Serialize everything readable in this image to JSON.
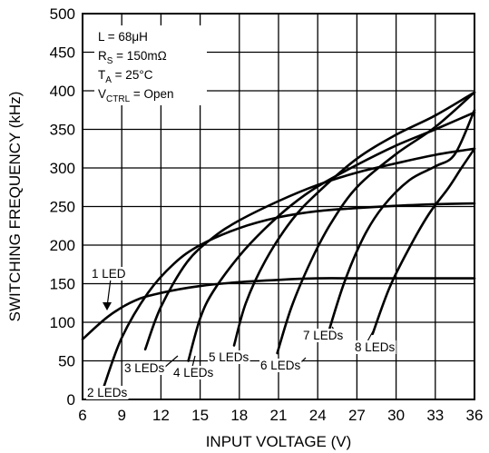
{
  "chart_data": {
    "type": "line",
    "xlabel": "INPUT VOLTAGE (V)",
    "ylabel": "SWITCHING FREQUENCY (kHz)",
    "xlim": [
      6,
      36
    ],
    "ylim": [
      0,
      500
    ],
    "xticks": [
      6,
      9,
      12,
      15,
      18,
      21,
      24,
      27,
      30,
      33,
      36
    ],
    "yticks": [
      0,
      50,
      100,
      150,
      200,
      250,
      300,
      350,
      400,
      450,
      500
    ],
    "grid": true,
    "conditions": {
      "l": "L = 68μH",
      "rs_main": "R",
      "rs_sub": "S",
      "rs_rest": " = 150mΩ",
      "ta_main": "T",
      "ta_sub": "A",
      "ta_rest": " = 25°C",
      "vctrl_main": "V",
      "vctrl_sub": "CTRL",
      "vctrl_rest": " = Open"
    },
    "series": [
      {
        "name": "1 LED",
        "x": [
          6,
          8,
          10,
          12,
          15,
          18,
          21,
          24,
          27,
          30,
          33,
          36
        ],
        "values": [
          78,
          108,
          128,
          138,
          147,
          152,
          155,
          157,
          157,
          157,
          157,
          157
        ]
      },
      {
        "name": "2 LEDs",
        "x": [
          7.6,
          9,
          11,
          13,
          15,
          18,
          21,
          24,
          27,
          30,
          33,
          36
        ],
        "values": [
          15,
          80,
          138,
          176,
          200,
          222,
          236,
          244,
          248,
          251,
          253,
          254
        ]
      },
      {
        "name": "3 LEDs",
        "x": [
          10.8,
          12,
          14,
          16,
          18,
          21,
          24,
          27,
          30,
          33,
          36
        ],
        "values": [
          65,
          120,
          178,
          210,
          232,
          257,
          278,
          294,
          306,
          317,
          325
        ]
      },
      {
        "name": "4 LEDs",
        "x": [
          14.1,
          15,
          16,
          18,
          20,
          22,
          24,
          27,
          30,
          33,
          36
        ],
        "values": [
          50,
          105,
          140,
          186,
          222,
          252,
          276,
          304,
          329,
          350,
          372
        ]
      },
      {
        "name": "5 LEDs",
        "x": [
          17.6,
          18.5,
          20,
          22,
          24,
          27,
          30,
          33,
          36
        ],
        "values": [
          70,
          125,
          180,
          232,
          268,
          312,
          343,
          368,
          398
        ]
      },
      {
        "name": "6 LEDs",
        "x": [
          20.9,
          22,
          23.5,
          25,
          27,
          30,
          33,
          36
        ],
        "values": [
          60,
          120,
          180,
          228,
          275,
          318,
          353,
          398
        ]
      },
      {
        "name": "7 LEDs",
        "x": [
          24.7,
          26,
          27.5,
          29,
          31,
          33,
          34.5,
          36
        ],
        "values": [
          80,
          150,
          210,
          250,
          284,
          302,
          318,
          375
        ]
      },
      {
        "name": "8 LEDs",
        "x": [
          28.2,
          29.5,
          31,
          32.5,
          34,
          35,
          36
        ],
        "values": [
          85,
          145,
          196,
          240,
          274,
          300,
          325
        ]
      }
    ]
  }
}
